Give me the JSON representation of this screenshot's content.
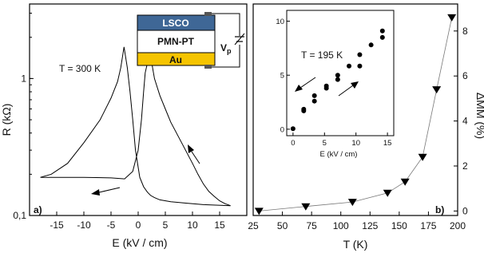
{
  "chart_data": [
    {
      "type": "line",
      "panel_label": "a)",
      "xlabel": "E (kV / cm)",
      "ylabel": "R (kΩ)",
      "xlim": [
        -20,
        20
      ],
      "ylim": [
        0.1,
        3.5
      ],
      "yscale": "log",
      "x_ticks": [
        -15,
        -10,
        -5,
        0,
        5,
        10,
        15
      ],
      "x_tick_labels": [
        "-15",
        "-10",
        "-5",
        "0",
        "5",
        "10",
        "15"
      ],
      "y_ticks": [
        0.1,
        1
      ],
      "y_tick_labels": [
        "0,1",
        "1"
      ],
      "annotation": "T = 300 K",
      "series": [
        {
          "branch": "sweep down",
          "x": [
            17,
            12,
            9,
            6,
            4,
            3,
            2.3,
            1.7,
            1,
            0.3,
            -0.5,
            -1,
            -1.5,
            -2,
            -2.6,
            -3.2,
            -3.8,
            -5,
            -7,
            -10,
            -13,
            -16,
            -18
          ],
          "y": [
            0.118,
            0.12,
            0.123,
            0.126,
            0.13,
            0.135,
            0.14,
            0.148,
            0.162,
            0.19,
            0.3,
            0.5,
            0.8,
            1.2,
            1.7,
            1.2,
            0.95,
            0.72,
            0.5,
            0.34,
            0.24,
            0.2,
            0.19
          ]
        },
        {
          "branch": "sweep up",
          "x": [
            -18,
            -15,
            -10,
            -5,
            -2.5,
            -1,
            0,
            0.6,
            1,
            1.3,
            1.7,
            2,
            2.5,
            3,
            4,
            5,
            6,
            8,
            10,
            11,
            12,
            13,
            14,
            15,
            16,
            17
          ],
          "y": [
            0.19,
            0.19,
            0.19,
            0.188,
            0.185,
            0.21,
            0.3,
            0.5,
            0.8,
            1.1,
            1.3,
            1.42,
            1.3,
            1.0,
            0.75,
            0.6,
            0.48,
            0.34,
            0.24,
            0.2,
            0.17,
            0.15,
            0.138,
            0.128,
            0.122,
            0.118
          ]
        }
      ],
      "inset_schematic": {
        "layers": [
          "LSCO",
          "PMN-PT",
          "Au"
        ],
        "voltage_label": "V",
        "voltage_subscript": "p",
        "colors": {
          "lsco": "#3f6796",
          "pmn": "#ffffff",
          "au": "#f5c400"
        }
      }
    },
    {
      "type": "line",
      "panel_label": "b)",
      "xlabel": "T (K)",
      "ylabel": "ΔMM (%)",
      "xlim": [
        25,
        200
      ],
      "ylim": [
        -0.2,
        9.2
      ],
      "x_ticks": [
        25,
        50,
        75,
        100,
        125,
        150,
        175,
        200
      ],
      "x_tick_labels": [
        "25",
        "50",
        "75",
        "100",
        "125",
        "150",
        "175",
        "200"
      ],
      "y_ticks": [
        0,
        2,
        4,
        6,
        8
      ],
      "y_tick_labels": [
        "0",
        "2",
        "4",
        "6",
        "8"
      ],
      "series": [
        {
          "marker": "triangle-down",
          "x": [
            30,
            70,
            110,
            140,
            155,
            170,
            182,
            195
          ],
          "y": [
            0.0,
            0.2,
            0.4,
            0.8,
            1.3,
            2.4,
            5.4,
            8.6
          ]
        }
      ],
      "inset": {
        "xlabel": "E (kV / cm)",
        "xlim": [
          -1,
          16
        ],
        "ylim": [
          -0.6,
          11
        ],
        "x_ticks": [
          0,
          5,
          10,
          15
        ],
        "x_tick_labels": [
          "0",
          "5",
          "10",
          "15"
        ],
        "y_ticks": [
          0,
          5,
          10
        ],
        "y_tick_labels": [
          "0",
          "5",
          "10"
        ],
        "annotation": "T = 195 K",
        "points": {
          "x": [
            0,
            1.7,
            1.7,
            3.4,
            3.4,
            5.3,
            5.3,
            7.1,
            7.1,
            8.9,
            10.6,
            10.6,
            12.4,
            14.2,
            14.2
          ],
          "y": [
            0.05,
            1.7,
            1.85,
            2.6,
            3.1,
            3.8,
            4.0,
            4.6,
            5.0,
            5.85,
            5.85,
            6.9,
            7.8,
            8.5,
            9.1
          ]
        }
      }
    }
  ]
}
